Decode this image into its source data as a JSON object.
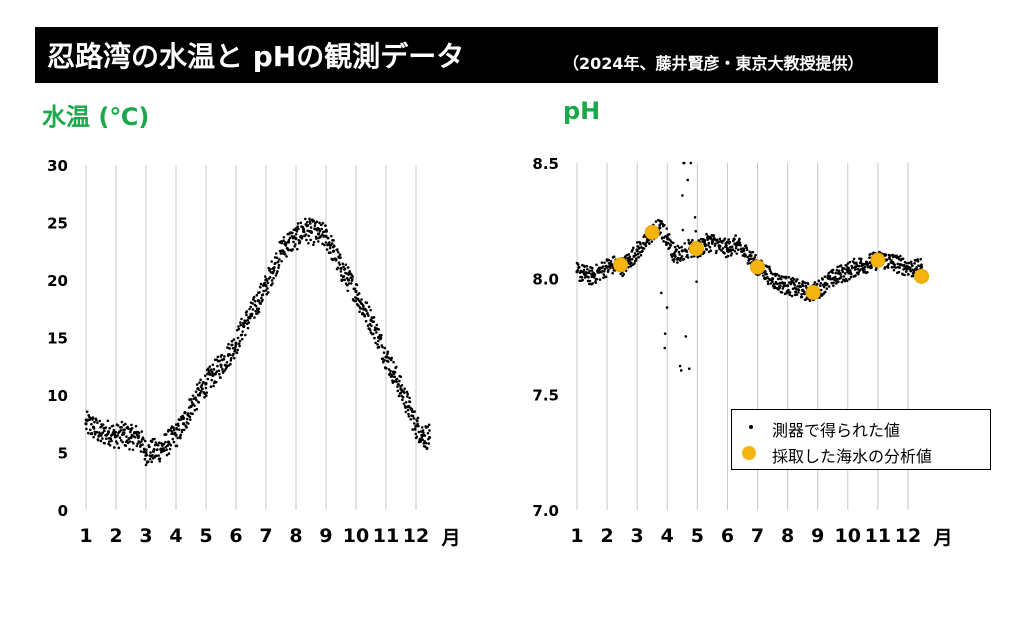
{
  "header": {
    "title": "忍路湾の水温と pHの観測データ",
    "subtitle": "（2024年、藤井賢彦・東京大教授提供）"
  },
  "colors": {
    "title_green": "#1aa84a",
    "banner_bg": "#000000",
    "sensor_points": "#000000",
    "sample_points": "#f5b40f",
    "gridline": "#c8c8c8"
  },
  "chart_data": [
    {
      "type": "scatter",
      "title": "水温 (℃)",
      "xlabel": "月",
      "x_ticks": [
        "1",
        "2",
        "3",
        "4",
        "5",
        "6",
        "7",
        "8",
        "9",
        "10",
        "11",
        "12"
      ],
      "xlim": [
        1,
        12.5
      ],
      "ylim": [
        0,
        30
      ],
      "y_ticks": [
        "0",
        "5",
        "10",
        "15",
        "20",
        "25",
        "30"
      ],
      "grid": "vertical",
      "series": [
        {
          "kind": "sensor",
          "x": [
            1.0,
            1.25,
            1.5,
            1.75,
            2.0,
            2.25,
            2.5,
            2.75,
            3.0,
            3.25,
            3.5,
            3.75,
            4.0,
            4.25,
            4.5,
            4.75,
            5.0,
            5.25,
            5.5,
            5.75,
            6.0,
            6.25,
            6.5,
            6.75,
            7.0,
            7.25,
            7.5,
            7.75,
            8.0,
            8.25,
            8.5,
            8.75,
            9.0,
            9.25,
            9.5,
            9.75,
            10.0,
            10.25,
            10.5,
            10.75,
            11.0,
            11.25,
            11.5,
            11.75,
            12.0,
            12.25,
            12.45
          ],
          "y": [
            7.5,
            7.2,
            6.6,
            6.8,
            6.4,
            6.6,
            6.3,
            6.4,
            5.0,
            5.1,
            5.3,
            5.9,
            6.5,
            7.5,
            9.0,
            10.0,
            11.0,
            11.8,
            12.6,
            13.5,
            14.5,
            16.0,
            17.0,
            18.2,
            19.5,
            21.0,
            22.5,
            23.3,
            23.6,
            24.4,
            24.2,
            24.0,
            23.8,
            22.5,
            21.0,
            20.0,
            19.0,
            17.5,
            16.5,
            15.0,
            13.3,
            12.0,
            10.5,
            9.0,
            7.3,
            6.5,
            6.3
          ]
        }
      ]
    },
    {
      "type": "scatter",
      "title": "pH",
      "xlabel": "月",
      "x_ticks": [
        "1",
        "2",
        "3",
        "4",
        "5",
        "6",
        "7",
        "8",
        "9",
        "10",
        "11",
        "12"
      ],
      "xlim": [
        1,
        12.5
      ],
      "ylim": [
        7.0,
        8.5
      ],
      "y_ticks": [
        "7.0",
        "7.5",
        "8.0",
        "8.5"
      ],
      "grid": "vertical",
      "legend": {
        "position": "bottom-right",
        "entries": [
          "測器で得られた値",
          "採取した海水の分析値"
        ]
      },
      "series": [
        {
          "name": "測器で得られた値",
          "x": [
            1.0,
            1.25,
            1.5,
            1.75,
            2.0,
            2.25,
            2.5,
            2.75,
            3.0,
            3.25,
            3.5,
            3.75,
            4.0,
            4.25,
            4.5,
            4.75,
            5.0,
            5.25,
            5.5,
            5.75,
            6.0,
            6.25,
            6.5,
            6.75,
            7.0,
            7.25,
            7.5,
            7.75,
            8.0,
            8.25,
            8.5,
            8.75,
            9.0,
            9.25,
            9.5,
            9.75,
            10.0,
            10.25,
            10.5,
            10.75,
            11.0,
            11.25,
            11.5,
            11.75,
            12.0,
            12.25,
            12.45
          ],
          "y": [
            8.03,
            8.02,
            8.01,
            8.03,
            8.05,
            8.06,
            8.05,
            8.08,
            8.12,
            8.15,
            8.2,
            8.22,
            8.18,
            8.1,
            8.12,
            8.13,
            8.12,
            8.15,
            8.16,
            8.14,
            8.13,
            8.15,
            8.12,
            8.1,
            8.05,
            8.03,
            8.0,
            7.98,
            7.97,
            7.96,
            7.95,
            7.94,
            7.95,
            7.98,
            8.0,
            8.02,
            8.03,
            8.05,
            8.06,
            8.07,
            8.08,
            8.08,
            8.07,
            8.06,
            8.05,
            8.04,
            8.05
          ]
        },
        {
          "name": "採取した海水の分析値",
          "x": [
            2.45,
            3.5,
            4.97,
            7.0,
            8.85,
            11.0,
            12.45
          ],
          "y": [
            8.06,
            8.2,
            8.13,
            8.05,
            7.94,
            8.08,
            8.01
          ]
        }
      ]
    }
  ]
}
